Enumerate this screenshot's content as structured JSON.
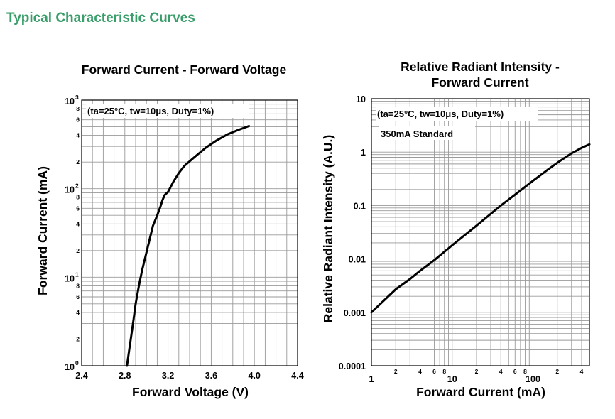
{
  "page_title": "Typical Characteristic Curves",
  "colors": {
    "title": "#3a9e6a",
    "grid": "#9a9a9a",
    "curve": "#000000"
  },
  "chart_data": [
    {
      "type": "line",
      "title": "Forward Current - Forward Voltage",
      "xlabel": "Forward Voltage (V)",
      "ylabel": "Forward Current (mA)",
      "annotation": "(ta=25°C, tw=10μs, Duty=1%)",
      "x_scale": "linear",
      "y_scale": "log",
      "xlim": [
        2.4,
        4.4
      ],
      "ylim": [
        1,
        1000
      ],
      "x_ticks": [
        {
          "v": 2.4,
          "label": "2.4"
        },
        {
          "v": 2.8,
          "label": "2.8"
        },
        {
          "v": 3.2,
          "label": "3.2"
        },
        {
          "v": 3.6,
          "label": "3.6"
        },
        {
          "v": 4.0,
          "label": "4.0"
        },
        {
          "v": 4.4,
          "label": "4.4"
        }
      ],
      "y_major_ticks": [
        {
          "v": 1,
          "base": "10",
          "exp": "0"
        },
        {
          "v": 10,
          "base": "10",
          "exp": "1"
        },
        {
          "v": 100,
          "base": "10",
          "exp": "2"
        },
        {
          "v": 1000,
          "base": "10",
          "exp": "3"
        }
      ],
      "y_minor_labels": [
        "2",
        "4",
        "6",
        "8"
      ],
      "series": [
        {
          "x": [
            2.82,
            2.84,
            2.86,
            2.88,
            2.9,
            2.93,
            2.96,
            3.0,
            3.03,
            3.06,
            3.1,
            3.13,
            3.15,
            3.17,
            3.2,
            3.25,
            3.3,
            3.35,
            3.45,
            3.55,
            3.65,
            3.75,
            3.85,
            3.95
          ],
          "y": [
            1,
            1.5,
            2.2,
            3.3,
            5,
            8,
            12,
            19,
            27,
            38,
            50,
            63,
            75,
            85,
            92,
            120,
            150,
            180,
            230,
            290,
            350,
            410,
            460,
            510
          ]
        }
      ]
    },
    {
      "type": "line",
      "title": "Relative Radiant Intensity -",
      "title_line2": "Forward Current",
      "xlabel": "Forward Current (mA)",
      "ylabel": "Relative Radiant Intensity (A.U.)",
      "annotation": "(ta=25°C, tw=10μs, Duty=1%)",
      "annotation2": "350mA Standard",
      "x_scale": "log",
      "y_scale": "log",
      "xlim": [
        1,
        500
      ],
      "ylim": [
        0.0001,
        10
      ],
      "x_major_ticks": [
        {
          "v": 1,
          "label": "1"
        },
        {
          "v": 10,
          "label": "10"
        },
        {
          "v": 100,
          "label": "100"
        }
      ],
      "x_minor_labels": [
        "2",
        "4",
        "6",
        "8"
      ],
      "y_ticks": [
        {
          "v": 0.0001,
          "label": "0.0001"
        },
        {
          "v": 0.001,
          "label": "0.001"
        },
        {
          "v": 0.01,
          "label": "0.01"
        },
        {
          "v": 0.1,
          "label": "0.1"
        },
        {
          "v": 1,
          "label": "1"
        },
        {
          "v": 10,
          "label": "10"
        }
      ],
      "series": [
        {
          "x": [
            1,
            2,
            3,
            4,
            6,
            10,
            20,
            40,
            60,
            100,
            150,
            200,
            300,
            400,
            500
          ],
          "y": [
            0.001,
            0.0027,
            0.0042,
            0.006,
            0.0095,
            0.018,
            0.042,
            0.1,
            0.16,
            0.29,
            0.46,
            0.63,
            0.95,
            1.2,
            1.4
          ]
        }
      ]
    }
  ]
}
